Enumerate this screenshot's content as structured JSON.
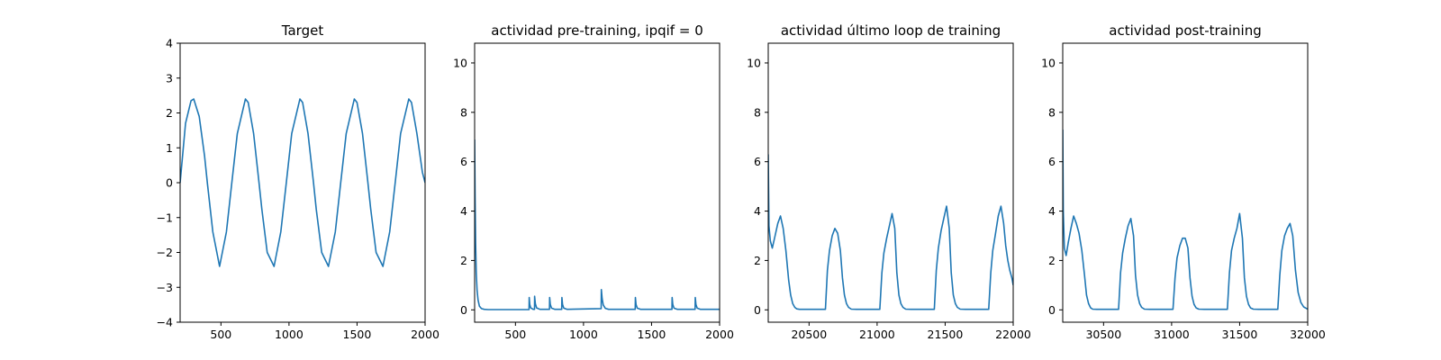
{
  "figure": {
    "background": "#ffffff",
    "line_color": "#1f77b4"
  },
  "chart_data": [
    {
      "type": "line",
      "title": "Target",
      "xlabel": "",
      "ylabel": "",
      "xlim": [
        200,
        2000
      ],
      "ylim": [
        -4,
        4
      ],
      "xticks": [
        500,
        1000,
        1500,
        2000
      ],
      "yticks": [
        -4,
        -3,
        -2,
        -1,
        0,
        1,
        2,
        3,
        4
      ],
      "grid": false,
      "series": [
        {
          "x": [
            200,
            240,
            280,
            300,
            340,
            380,
            400,
            440,
            490,
            540,
            580,
            620,
            680,
            700,
            740,
            780,
            800,
            840,
            890,
            940,
            980,
            1020,
            1080,
            1100,
            1140,
            1180,
            1200,
            1240,
            1290,
            1340,
            1380,
            1420,
            1480,
            1500,
            1540,
            1580,
            1600,
            1640,
            1690,
            1740,
            1780,
            1820,
            1880,
            1900,
            1940,
            1980,
            2000
          ],
          "y": [
            0,
            1.7,
            2.35,
            2.4,
            1.9,
            0.75,
            0,
            -1.41,
            -2.4,
            -1.41,
            0,
            1.41,
            2.4,
            2.3,
            1.41,
            0,
            -0.75,
            -2.0,
            -2.4,
            -1.41,
            0,
            1.41,
            2.4,
            2.3,
            1.41,
            0,
            -0.75,
            -2.0,
            -2.4,
            -1.41,
            0,
            1.41,
            2.4,
            2.3,
            1.41,
            0,
            -0.75,
            -2.0,
            -2.4,
            -1.41,
            0,
            1.41,
            2.4,
            2.3,
            1.41,
            0.3,
            0
          ]
        }
      ]
    },
    {
      "type": "line",
      "title": "actividad pre-training, ipqif = 0",
      "xlabel": "",
      "ylabel": "",
      "xlim": [
        200,
        2000
      ],
      "ylim": [
        -0.5,
        10.8
      ],
      "xticks": [
        500,
        1000,
        1500,
        2000
      ],
      "yticks": [
        0,
        2,
        4,
        6,
        8,
        10
      ],
      "grid": false,
      "series": [
        {
          "x": [
            200,
            203,
            207,
            212,
            218,
            225,
            235,
            250,
            270,
            300,
            600,
            601,
            605,
            612,
            630,
            640,
            641,
            646,
            655,
            680,
            750,
            751,
            756,
            765,
            790,
            840,
            841,
            846,
            855,
            880,
            1130,
            1131,
            1137,
            1145,
            1160,
            1185,
            1380,
            1381,
            1386,
            1395,
            1420,
            1650,
            1651,
            1656,
            1665,
            1690,
            1820,
            1821,
            1826,
            1835,
            1860,
            2000
          ],
          "y": [
            6.9,
            4.6,
            2.7,
            1.5,
            0.8,
            0.4,
            0.15,
            0.05,
            0.02,
            0.01,
            0.01,
            0.5,
            0.22,
            0.08,
            0.02,
            0.02,
            0.55,
            0.25,
            0.08,
            0.02,
            0.02,
            0.5,
            0.22,
            0.07,
            0.02,
            0.02,
            0.5,
            0.22,
            0.07,
            0.02,
            0.05,
            0.82,
            0.45,
            0.2,
            0.06,
            0.02,
            0.02,
            0.5,
            0.22,
            0.07,
            0.02,
            0.02,
            0.5,
            0.22,
            0.07,
            0.02,
            0.02,
            0.5,
            0.22,
            0.07,
            0.02,
            0.02
          ]
        }
      ]
    },
    {
      "type": "line",
      "title": "actividad último loop de training",
      "xlabel": "",
      "ylabel": "",
      "xlim": [
        20200,
        22000
      ],
      "ylim": [
        -0.5,
        10.8
      ],
      "xticks": [
        20500,
        21000,
        21500,
        22000
      ],
      "yticks": [
        0,
        2,
        4,
        6,
        8,
        10
      ],
      "grid": false,
      "series": [
        {
          "x": [
            20200,
            20205,
            20215,
            20230,
            20250,
            20270,
            20290,
            20310,
            20330,
            20350,
            20365,
            20380,
            20395,
            20410,
            20430,
            20470,
            20620,
            20635,
            20650,
            20670,
            20690,
            20710,
            20730,
            20745,
            20760,
            20775,
            20790,
            20810,
            20850,
            21020,
            21035,
            21050,
            21070,
            21090,
            21110,
            21130,
            21145,
            21160,
            21175,
            21190,
            21210,
            21250,
            21420,
            21435,
            21450,
            21470,
            21490,
            21510,
            21530,
            21545,
            21560,
            21575,
            21590,
            21610,
            21650,
            21820,
            21835,
            21850,
            21870,
            21890,
            21910,
            21930,
            21945,
            21960,
            21975,
            21990,
            22000
          ],
          "y": [
            6.3,
            3.4,
            2.8,
            2.5,
            3.0,
            3.5,
            3.8,
            3.3,
            2.4,
            1.2,
            0.6,
            0.25,
            0.1,
            0.04,
            0.02,
            0.02,
            0.02,
            1.6,
            2.4,
            3.0,
            3.3,
            3.1,
            2.4,
            1.3,
            0.6,
            0.25,
            0.1,
            0.03,
            0.02,
            0.02,
            1.5,
            2.3,
            2.9,
            3.4,
            3.9,
            3.3,
            1.5,
            0.6,
            0.25,
            0.1,
            0.03,
            0.02,
            0.02,
            1.6,
            2.5,
            3.2,
            3.7,
            4.2,
            3.3,
            1.5,
            0.6,
            0.25,
            0.1,
            0.03,
            0.02,
            0.02,
            1.5,
            2.4,
            3.1,
            3.8,
            4.2,
            3.5,
            2.6,
            2.0,
            1.6,
            1.3,
            1.0
          ]
        }
      ]
    },
    {
      "type": "line",
      "title": "actividad post-training",
      "xlabel": "",
      "ylabel": "",
      "xlim": [
        30200,
        32000
      ],
      "ylim": [
        -0.5,
        10.8
      ],
      "xticks": [
        30500,
        31000,
        31500,
        32000
      ],
      "yticks": [
        0,
        2,
        4,
        6,
        8,
        10
      ],
      "grid": false,
      "series": [
        {
          "x": [
            30200,
            30204,
            30212,
            30225,
            30240,
            30260,
            30280,
            30300,
            30320,
            30340,
            30360,
            30375,
            30390,
            30405,
            30420,
            30450,
            30610,
            30625,
            30640,
            30660,
            30680,
            30700,
            30720,
            30735,
            30750,
            30765,
            30780,
            30800,
            30840,
            31010,
            31025,
            31040,
            31060,
            31080,
            31100,
            31120,
            31135,
            31150,
            31165,
            31180,
            31200,
            31240,
            31410,
            31425,
            31440,
            31460,
            31480,
            31500,
            31520,
            31535,
            31550,
            31565,
            31580,
            31600,
            31640,
            31780,
            31795,
            31810,
            31830,
            31850,
            31870,
            31890,
            31910,
            31930,
            31950,
            31970,
            32000
          ],
          "y": [
            7.3,
            4.0,
            2.5,
            2.2,
            2.7,
            3.3,
            3.8,
            3.5,
            3.1,
            2.4,
            1.4,
            0.6,
            0.25,
            0.08,
            0.03,
            0.02,
            0.02,
            1.5,
            2.3,
            2.9,
            3.4,
            3.7,
            3.0,
            1.4,
            0.6,
            0.25,
            0.1,
            0.03,
            0.02,
            0.02,
            1.3,
            2.1,
            2.6,
            2.9,
            2.9,
            2.5,
            1.3,
            0.55,
            0.22,
            0.08,
            0.03,
            0.02,
            0.02,
            1.5,
            2.4,
            2.9,
            3.3,
            3.9,
            2.9,
            1.3,
            0.55,
            0.22,
            0.08,
            0.03,
            0.02,
            0.02,
            1.4,
            2.4,
            3.0,
            3.3,
            3.5,
            3.0,
            1.6,
            0.7,
            0.3,
            0.12,
            0.03
          ]
        }
      ]
    }
  ]
}
